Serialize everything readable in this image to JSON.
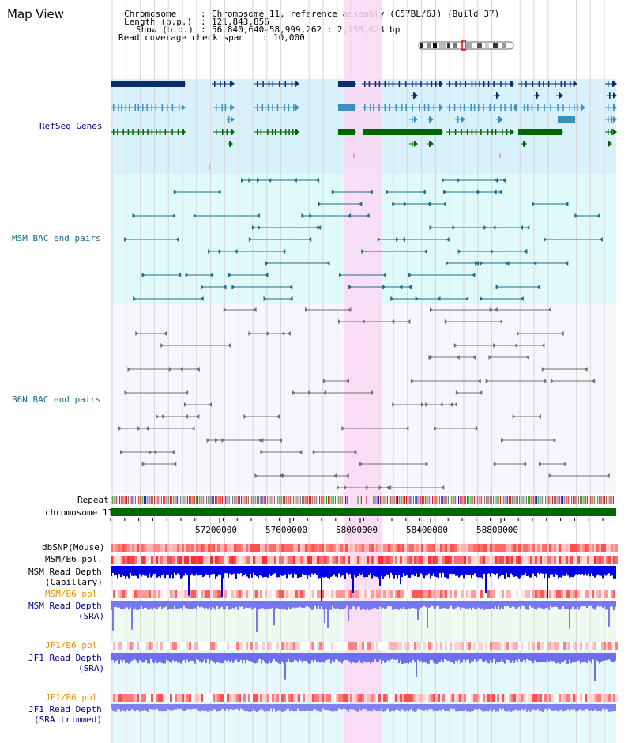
{
  "title": "Map View",
  "header": {
    "chromosome_label": "Chromosome",
    "chromosome_value": "Chromosome 11, reference assembly (C57BL/6J) (Build 37)",
    "length_label": "Length (b.p.)",
    "length_value": "121,843,856",
    "show_label": "Show (b.p.)",
    "show_value": "56,840,640-58,999,262 : 2,158,623 bp",
    "span_label": "Read coverage check span",
    "span_value": "10,000",
    "sep": ":"
  },
  "tracks": {
    "refseq": "RefSeq Genes",
    "msm_bac": "MSM BAC end pairs",
    "b6n_bac": "B6N BAC end pairs",
    "repeat": "Repeat",
    "chromosome": "chromosome 11",
    "dbsnp": "dbSNP(Mouse)",
    "msm_b6_pol": "MSM/B6 pol.",
    "msm_depth_cap_1": "MSM Read Depth",
    "msm_depth_cap_2": "(Capillary)",
    "msm_b6_pol_2": "MSM/B6 pol.",
    "msm_depth_sra_1": "MSM Read Depth",
    "msm_depth_sra_2": "(SRA)",
    "jf1_b6_pol": "JF1/B6 pol.",
    "jf1_depth_sra_1": "JF1 Read Depth",
    "jf1_depth_sra_2": "(SRA)",
    "jf1_b6_pol_2": "JF1/B6 pol.",
    "jf1_depth_trim_1": "JF1 Read Depth",
    "jf1_depth_trim_2": "(SRA trimmed)"
  },
  "axis_ticks": [
    "57200000",
    "57600000",
    "58000000",
    "58400000",
    "58800000"
  ],
  "colors": {
    "refseq_bg": "#d9f1fa",
    "msm_bg": "#e0fafa",
    "b6n_bg": "#f7f7fb",
    "highlight": "#fbd8f5",
    "navy": "#0a2d6e",
    "steel": "#3a8fbf",
    "green": "#006600",
    "teal": "#1c6d8c",
    "gray": "#707070",
    "label_blue": "#00008b",
    "label_teal": "#1c6d8c",
    "label_orange": "#e69500",
    "red_snp": "#ff4040",
    "depth_blue": "#0000e6",
    "depth_violet": "#7777ee"
  }
}
